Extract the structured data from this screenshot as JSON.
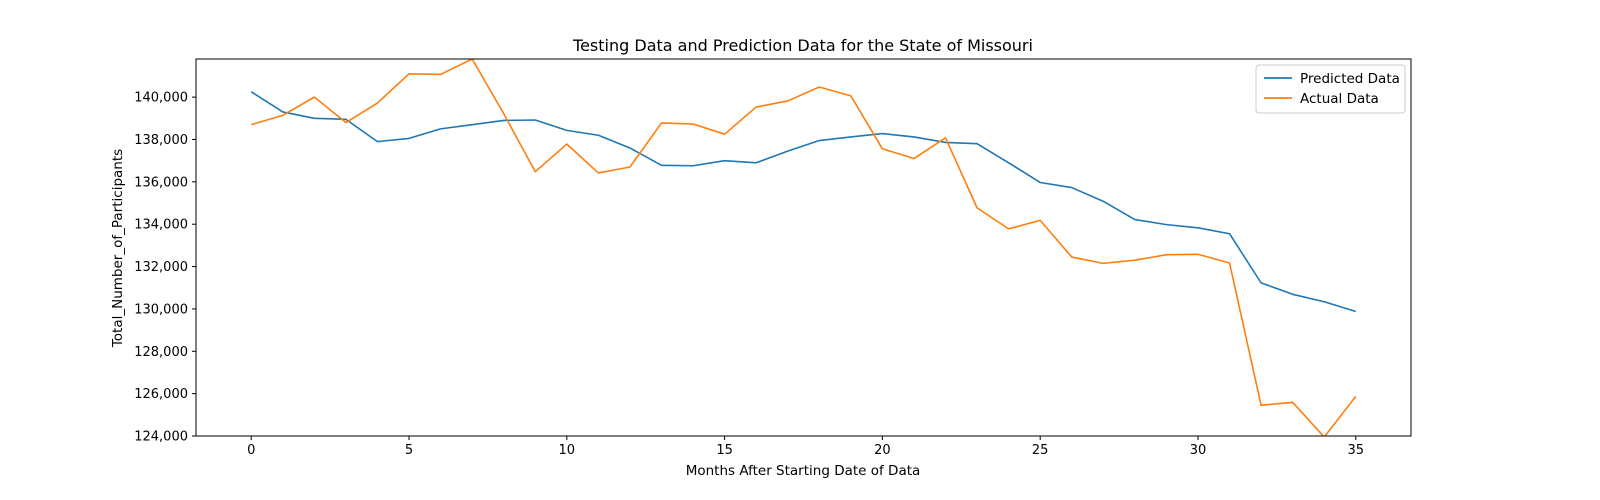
{
  "chart_data": {
    "type": "line",
    "title": "Testing Data and Prediction Data for the State of Missouri",
    "xlabel": "Months After Starting Date of Data",
    "ylabel": "Total_Number_of_Participants",
    "xlim": [
      -1.75,
      36.75
    ],
    "ylim": [
      124000,
      141800
    ],
    "xticks": [
      0,
      5,
      10,
      15,
      20,
      25,
      30,
      35
    ],
    "yticks": [
      124000,
      126000,
      128000,
      130000,
      132000,
      134000,
      136000,
      138000,
      140000
    ],
    "ytick_labels": [
      "124,000",
      "126,000",
      "128,000",
      "130,000",
      "132,000",
      "134,000",
      "136,000",
      "138,000",
      "140,000"
    ],
    "grid": false,
    "legend_position": "upper right",
    "x": [
      0,
      1,
      2,
      3,
      4,
      5,
      6,
      7,
      8,
      9,
      10,
      11,
      12,
      13,
      14,
      15,
      16,
      17,
      18,
      19,
      20,
      21,
      22,
      23,
      24,
      25,
      26,
      27,
      28,
      29,
      30,
      31,
      32,
      33,
      34,
      35
    ],
    "series": [
      {
        "name": "Predicted Data",
        "color": "#1f77b4",
        "values": [
          140250,
          139300,
          139000,
          138950,
          137900,
          138050,
          138500,
          138700,
          138900,
          138920,
          138430,
          138200,
          137600,
          136780,
          136760,
          137000,
          136900,
          137450,
          137950,
          138120,
          138280,
          138120,
          137860,
          137800,
          136900,
          135970,
          135730,
          135080,
          134220,
          133980,
          133830,
          133550,
          131230,
          130690,
          130340,
          129880
        ]
      },
      {
        "name": "Actual Data",
        "color": "#ff7f0e",
        "values": [
          138700,
          139140,
          140000,
          138800,
          139720,
          141100,
          141070,
          141800,
          139220,
          136480,
          137780,
          136420,
          136700,
          138780,
          138730,
          138250,
          139530,
          139820,
          140480,
          140060,
          137560,
          137100,
          138080,
          134770,
          133780,
          134180,
          132450,
          132150,
          132300,
          132560,
          132580,
          132170,
          125450,
          125590,
          123950,
          125870
        ]
      }
    ]
  }
}
